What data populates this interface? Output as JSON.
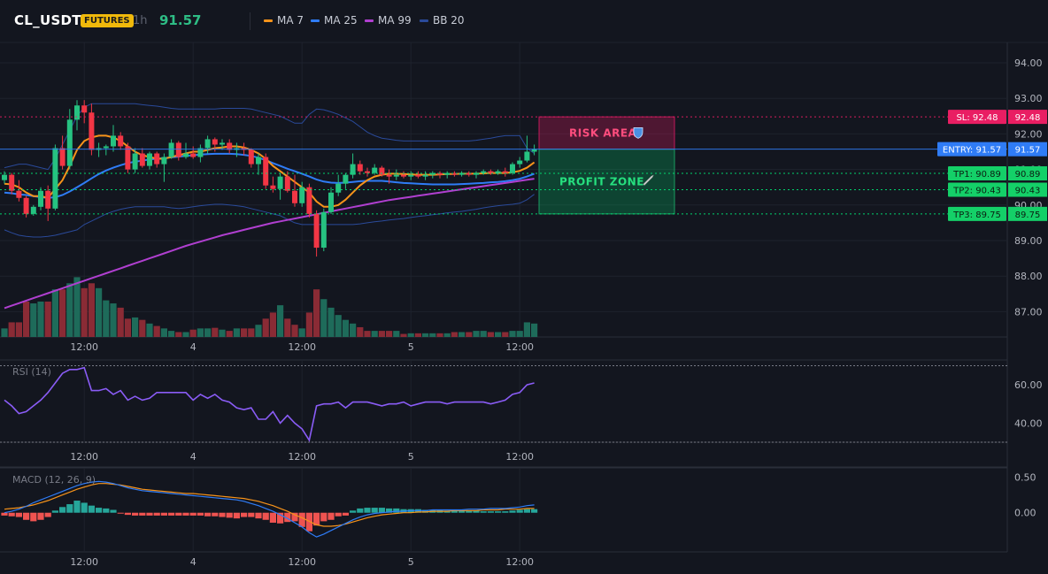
{
  "header": {
    "symbol": "CL_USDT",
    "market_badge": "FUTURES",
    "timeframe": "1h",
    "last_price": "91.57",
    "indicators": [
      {
        "label": "MA 7",
        "color": "#f7931a"
      },
      {
        "label": "MA 25",
        "color": "#2f7cf6"
      },
      {
        "label": "MA 99",
        "color": "#b03fd0"
      },
      {
        "label": "BB 20",
        "color": "#2a4a9a"
      }
    ]
  },
  "colors": {
    "background": "#13161f",
    "grid": "#1e222d",
    "up": "#26c281",
    "down": "#f23645",
    "volume_up": "#1e6b5a",
    "volume_down": "#8a2b35",
    "rsi": "#8a5cf6",
    "macd": "#2f7cf6",
    "signal": "#f7931a",
    "hist_up": "#26a69a",
    "hist_down": "#ef5350",
    "stop_loss": "#e91e63",
    "entry": "#2f7cf6",
    "take_profit": "#00e676"
  },
  "chart_data": [
    {
      "type": "candlestick",
      "name": "price",
      "x_tick_labels": [
        "12:00",
        "4",
        "12:00",
        "5",
        "12:00"
      ],
      "y_tick_labels": [
        "94.00",
        "93.00",
        "92.00",
        "91.00",
        "90.00",
        "89.00",
        "88.00",
        "87.00"
      ],
      "ylim": [
        86.25,
        94.5
      ],
      "ohlc": [
        [
          90.7,
          90.95,
          90.6,
          90.85
        ],
        [
          90.85,
          90.9,
          90.3,
          90.4
        ],
        [
          90.4,
          90.7,
          90.1,
          90.2
        ],
        [
          90.2,
          90.25,
          89.65,
          89.75
        ],
        [
          89.75,
          90.0,
          89.7,
          89.95
        ],
        [
          89.95,
          90.5,
          89.85,
          90.4
        ],
        [
          90.4,
          90.55,
          89.55,
          89.9
        ],
        [
          89.9,
          91.7,
          89.85,
          91.6
        ],
        [
          91.6,
          91.95,
          91.0,
          91.1
        ],
        [
          91.1,
          92.7,
          91.0,
          92.4
        ],
        [
          92.4,
          92.95,
          92.1,
          92.8
        ],
        [
          92.8,
          92.95,
          92.3,
          92.6
        ],
        [
          92.6,
          92.85,
          91.4,
          91.55
        ],
        [
          91.55,
          91.75,
          91.35,
          91.6
        ],
        [
          91.6,
          91.7,
          91.4,
          91.65
        ],
        [
          91.65,
          92.25,
          91.5,
          91.95
        ],
        [
          91.95,
          92.05,
          91.55,
          91.65
        ],
        [
          91.65,
          91.75,
          90.9,
          91.0
        ],
        [
          91.0,
          91.6,
          90.9,
          91.45
        ],
        [
          91.45,
          91.6,
          91.05,
          91.1
        ],
        [
          91.1,
          91.5,
          91.0,
          91.45
        ],
        [
          91.45,
          91.5,
          91.05,
          91.15
        ],
        [
          91.15,
          91.45,
          90.65,
          91.35
        ],
        [
          91.35,
          91.85,
          91.3,
          91.75
        ],
        [
          91.75,
          91.8,
          91.25,
          91.35
        ],
        [
          91.35,
          91.75,
          91.3,
          91.45
        ],
        [
          91.45,
          91.65,
          91.3,
          91.35
        ],
        [
          91.35,
          91.7,
          91.2,
          91.6
        ],
        [
          91.6,
          91.95,
          91.45,
          91.85
        ],
        [
          91.85,
          91.9,
          91.5,
          91.7
        ],
        [
          91.7,
          91.85,
          91.55,
          91.75
        ],
        [
          91.75,
          91.85,
          91.45,
          91.55
        ],
        [
          91.55,
          91.75,
          91.35,
          91.6
        ],
        [
          91.6,
          91.75,
          91.4,
          91.55
        ],
        [
          91.55,
          91.6,
          91.05,
          91.15
        ],
        [
          91.15,
          91.45,
          90.85,
          91.35
        ],
        [
          91.35,
          91.45,
          90.45,
          90.55
        ],
        [
          90.55,
          90.8,
          90.35,
          90.45
        ],
        [
          90.45,
          90.9,
          90.15,
          90.8
        ],
        [
          90.8,
          90.95,
          90.35,
          90.4
        ],
        [
          90.4,
          90.85,
          89.95,
          90.05
        ],
        [
          90.05,
          90.65,
          89.95,
          90.5
        ],
        [
          90.5,
          90.6,
          89.65,
          89.75
        ],
        [
          89.75,
          89.85,
          88.55,
          88.8
        ],
        [
          88.8,
          89.9,
          88.7,
          89.8
        ],
        [
          89.8,
          90.5,
          89.75,
          90.35
        ],
        [
          90.35,
          90.85,
          90.25,
          90.6
        ],
        [
          90.6,
          90.9,
          90.45,
          90.85
        ],
        [
          90.85,
          91.45,
          90.75,
          91.15
        ],
        [
          91.15,
          91.25,
          90.85,
          90.95
        ],
        [
          90.95,
          91.05,
          90.8,
          90.9
        ],
        [
          90.9,
          91.15,
          90.85,
          91.05
        ],
        [
          91.05,
          91.1,
          90.8,
          90.85
        ],
        [
          90.85,
          91.0,
          90.6,
          90.8
        ],
        [
          90.8,
          91.0,
          90.7,
          90.85
        ],
        [
          90.85,
          90.95,
          90.75,
          90.8
        ],
        [
          90.8,
          90.95,
          90.7,
          90.85
        ],
        [
          90.85,
          90.95,
          90.75,
          90.8
        ],
        [
          90.8,
          90.95,
          90.7,
          90.85
        ],
        [
          90.85,
          90.95,
          90.75,
          90.9
        ],
        [
          90.9,
          90.95,
          90.75,
          90.85
        ],
        [
          90.85,
          90.95,
          90.75,
          90.9
        ],
        [
          90.9,
          90.95,
          90.8,
          90.85
        ],
        [
          90.85,
          90.95,
          90.8,
          90.9
        ],
        [
          90.9,
          90.95,
          90.8,
          90.85
        ],
        [
          90.85,
          90.95,
          90.75,
          90.9
        ],
        [
          90.9,
          91.0,
          90.85,
          90.95
        ],
        [
          90.95,
          91.0,
          90.85,
          90.9
        ],
        [
          90.9,
          91.0,
          90.85,
          90.95
        ],
        [
          90.95,
          91.05,
          90.8,
          90.9
        ],
        [
          90.9,
          91.2,
          90.85,
          91.15
        ],
        [
          91.15,
          91.35,
          91.05,
          91.25
        ],
        [
          91.25,
          91.95,
          91.2,
          91.5
        ],
        [
          91.5,
          91.7,
          91.4,
          91.57
        ]
      ],
      "ma7": [
        90.6,
        90.58,
        90.5,
        90.35,
        90.25,
        90.25,
        90.2,
        90.45,
        90.7,
        91.1,
        91.55,
        91.8,
        91.9,
        91.95,
        91.95,
        91.9,
        91.8,
        91.65,
        91.5,
        91.4,
        91.35,
        91.3,
        91.3,
        91.35,
        91.4,
        91.45,
        91.5,
        91.5,
        91.55,
        91.6,
        91.62,
        91.65,
        91.65,
        91.62,
        91.55,
        91.45,
        91.3,
        91.1,
        90.95,
        90.8,
        90.65,
        90.5,
        90.35,
        90.1,
        89.95,
        89.95,
        90.0,
        90.15,
        90.35,
        90.55,
        90.7,
        90.8,
        90.85,
        90.88,
        90.88,
        90.87,
        90.86,
        90.85,
        90.85,
        90.85,
        90.86,
        90.87,
        90.87,
        90.88,
        90.88,
        90.88,
        90.89,
        90.9,
        90.9,
        90.9,
        90.92,
        90.96,
        91.05,
        91.2
      ],
      "ma25": [
        90.35,
        90.33,
        90.3,
        90.28,
        90.25,
        90.22,
        90.2,
        90.22,
        90.28,
        90.38,
        90.5,
        90.62,
        90.75,
        90.87,
        90.97,
        91.05,
        91.12,
        91.18,
        91.22,
        91.25,
        91.28,
        91.3,
        91.32,
        91.34,
        91.36,
        91.38,
        91.4,
        91.42,
        91.43,
        91.44,
        91.44,
        91.44,
        91.43,
        91.41,
        91.38,
        91.33,
        91.26,
        91.18,
        91.1,
        91.02,
        90.95,
        90.88,
        90.8,
        90.72,
        90.66,
        90.63,
        90.62,
        90.63,
        90.65,
        90.67,
        90.68,
        90.68,
        90.68,
        90.66,
        90.64,
        90.62,
        90.61,
        90.6,
        90.59,
        90.58,
        90.58,
        90.58,
        90.58,
        90.59,
        90.6,
        90.61,
        90.62,
        90.64,
        90.65,
        90.67,
        90.7,
        90.74,
        90.8,
        90.88
      ],
      "ma99": [
        87.1,
        87.17,
        87.24,
        87.31,
        87.38,
        87.45,
        87.52,
        87.59,
        87.66,
        87.73,
        87.8,
        87.87,
        87.94,
        88.01,
        88.08,
        88.15,
        88.22,
        88.29,
        88.36,
        88.43,
        88.5,
        88.57,
        88.64,
        88.71,
        88.78,
        88.85,
        88.91,
        88.97,
        89.03,
        89.09,
        89.15,
        89.2,
        89.25,
        89.3,
        89.35,
        89.4,
        89.45,
        89.5,
        89.54,
        89.58,
        89.62,
        89.66,
        89.7,
        89.74,
        89.78,
        89.82,
        89.86,
        89.9,
        89.94,
        89.98,
        90.02,
        90.06,
        90.1,
        90.14,
        90.17,
        90.2,
        90.23,
        90.26,
        90.29,
        90.32,
        90.35,
        90.38,
        90.41,
        90.44,
        90.47,
        90.5,
        90.53,
        90.56,
        90.59,
        90.62,
        90.65,
        90.68,
        90.71,
        90.74
      ],
      "bb_upper": [
        91.05,
        91.1,
        91.15,
        91.15,
        91.1,
        91.05,
        91.0,
        91.3,
        91.7,
        92.1,
        92.5,
        92.75,
        92.85,
        92.85,
        92.85,
        92.85,
        92.85,
        92.85,
        92.85,
        92.82,
        92.8,
        92.78,
        92.75,
        92.72,
        92.7,
        92.7,
        92.7,
        92.7,
        92.7,
        92.7,
        92.72,
        92.72,
        92.72,
        92.72,
        92.7,
        92.65,
        92.6,
        92.55,
        92.5,
        92.4,
        92.3,
        92.3,
        92.55,
        92.7,
        92.68,
        92.62,
        92.55,
        92.45,
        92.35,
        92.2,
        92.05,
        91.95,
        91.88,
        91.85,
        91.82,
        91.8,
        91.8,
        91.8,
        91.8,
        91.8,
        91.8,
        91.8,
        91.8,
        91.8,
        91.8,
        91.82,
        91.85,
        91.88,
        91.92,
        91.95,
        91.95,
        91.95,
        91.6,
        91.45
      ],
      "bb_lower": [
        89.3,
        89.22,
        89.15,
        89.12,
        89.1,
        89.1,
        89.12,
        89.15,
        89.2,
        89.25,
        89.3,
        89.45,
        89.55,
        89.65,
        89.75,
        89.82,
        89.88,
        89.92,
        89.95,
        89.95,
        89.95,
        89.95,
        89.95,
        89.92,
        89.9,
        89.92,
        89.95,
        89.98,
        90.0,
        90.02,
        90.02,
        90.0,
        89.98,
        89.95,
        89.9,
        89.85,
        89.8,
        89.75,
        89.7,
        89.6,
        89.5,
        89.45,
        89.45,
        89.45,
        89.45,
        89.45,
        89.45,
        89.45,
        89.45,
        89.47,
        89.5,
        89.53,
        89.55,
        89.58,
        89.6,
        89.62,
        89.65,
        89.68,
        89.7,
        89.73,
        89.75,
        89.78,
        89.8,
        89.82,
        89.85,
        89.88,
        89.92,
        89.95,
        89.98,
        90.0,
        90.02,
        90.05,
        90.15,
        90.3
      ],
      "volume_ylim": [
        0,
        100
      ],
      "volume": [
        14,
        24,
        24,
        58,
        55,
        58,
        58,
        78,
        78,
        88,
        98,
        80,
        88,
        80,
        60,
        55,
        48,
        30,
        32,
        28,
        22,
        18,
        14,
        10,
        8,
        8,
        12,
        14,
        14,
        15,
        12,
        10,
        14,
        14,
        14,
        20,
        30,
        40,
        52,
        30,
        20,
        14,
        40,
        78,
        62,
        48,
        36,
        28,
        22,
        16,
        10,
        10,
        10,
        10,
        10,
        5,
        6,
        6,
        6,
        6,
        6,
        6,
        8,
        8,
        8,
        10,
        10,
        8,
        8,
        8,
        10,
        10,
        24,
        22
      ],
      "levels": [
        {
          "label": "SL: 92.48",
          "value": 92.48,
          "tag": "92.48",
          "kind": "stop_loss"
        },
        {
          "label": "ENTRY: 91.57",
          "value": 91.57,
          "tag": "91.57",
          "kind": "entry"
        },
        {
          "label": "TP1: 90.89",
          "value": 90.89,
          "tag": "90.89",
          "kind": "take_profit"
        },
        {
          "label": "TP2: 90.43",
          "value": 90.43,
          "tag": "90.43",
          "kind": "take_profit"
        },
        {
          "label": "TP3: 89.75",
          "value": 89.75,
          "tag": "89.75",
          "kind": "take_profit"
        }
      ],
      "zones": [
        {
          "label": "RISK AREA",
          "icon": "shield-icon",
          "from": 91.57,
          "to": 92.48,
          "kind": "risk"
        },
        {
          "label": "PROFIT ZONE",
          "icon": "rocket-icon",
          "from": 89.75,
          "to": 91.57,
          "kind": "profit"
        }
      ]
    },
    {
      "type": "line",
      "name": "RSI (14)",
      "title": "RSI (14)",
      "ylim": [
        30,
        73
      ],
      "y_tick_labels": [
        "60.00",
        "40.00"
      ],
      "overbought": 70,
      "oversold": 30,
      "values": [
        52,
        49,
        45,
        46,
        49,
        52,
        56,
        61,
        66,
        68,
        68,
        69,
        57,
        57,
        58,
        55,
        57,
        52,
        54,
        52,
        53,
        56,
        56,
        56,
        56,
        56,
        52,
        55,
        53,
        55,
        52,
        51,
        48,
        47,
        48,
        42,
        42,
        46,
        40,
        44,
        40,
        37,
        31,
        49,
        50,
        50,
        51,
        48,
        51,
        51,
        51,
        50,
        49,
        50,
        50,
        51,
        49,
        50,
        51,
        51,
        51,
        50,
        51,
        51,
        51,
        51,
        51,
        50,
        51,
        52,
        55,
        56,
        60,
        61
      ]
    },
    {
      "type": "bar+line",
      "name": "MACD (12, 26, 9)",
      "title": "MACD (12, 26, 9)",
      "ylim": [
        -0.55,
        0.63
      ],
      "y_tick_labels": [
        "0.50",
        "0.00"
      ],
      "macd": [
        0.0,
        0.02,
        0.05,
        0.09,
        0.14,
        0.18,
        0.22,
        0.26,
        0.3,
        0.34,
        0.38,
        0.41,
        0.43,
        0.44,
        0.43,
        0.41,
        0.38,
        0.35,
        0.33,
        0.31,
        0.3,
        0.29,
        0.28,
        0.27,
        0.26,
        0.25,
        0.24,
        0.23,
        0.22,
        0.21,
        0.2,
        0.19,
        0.18,
        0.16,
        0.13,
        0.1,
        0.06,
        0.02,
        -0.03,
        -0.08,
        -0.14,
        -0.2,
        -0.28,
        -0.34,
        -0.3,
        -0.25,
        -0.2,
        -0.15,
        -0.1,
        -0.06,
        -0.03,
        -0.01,
        0.0,
        0.01,
        0.02,
        0.02,
        0.03,
        0.03,
        0.03,
        0.04,
        0.04,
        0.04,
        0.04,
        0.04,
        0.05,
        0.05,
        0.05,
        0.06,
        0.06,
        0.06,
        0.07,
        0.08,
        0.1,
        0.11
      ],
      "signal": [
        0.05,
        0.06,
        0.07,
        0.09,
        0.11,
        0.14,
        0.17,
        0.21,
        0.25,
        0.29,
        0.33,
        0.36,
        0.39,
        0.41,
        0.41,
        0.4,
        0.39,
        0.37,
        0.35,
        0.33,
        0.32,
        0.31,
        0.3,
        0.29,
        0.28,
        0.27,
        0.27,
        0.26,
        0.25,
        0.24,
        0.23,
        0.22,
        0.21,
        0.2,
        0.18,
        0.16,
        0.13,
        0.1,
        0.06,
        0.02,
        -0.03,
        -0.07,
        -0.12,
        -0.17,
        -0.19,
        -0.19,
        -0.18,
        -0.16,
        -0.13,
        -0.1,
        -0.07,
        -0.05,
        -0.03,
        -0.02,
        -0.01,
        0.0,
        0.0,
        0.01,
        0.01,
        0.02,
        0.02,
        0.02,
        0.03,
        0.03,
        0.03,
        0.03,
        0.04,
        0.04,
        0.04,
        0.05,
        0.05,
        0.05,
        0.06,
        0.06
      ],
      "histogram": [
        -0.04,
        -0.05,
        -0.06,
        -0.1,
        -0.12,
        -0.1,
        -0.06,
        0.03,
        0.08,
        0.12,
        0.17,
        0.14,
        0.1,
        0.07,
        0.06,
        0.04,
        -0.01,
        -0.03,
        -0.04,
        -0.04,
        -0.04,
        -0.04,
        -0.04,
        -0.04,
        -0.04,
        -0.04,
        -0.04,
        -0.04,
        -0.05,
        -0.05,
        -0.06,
        -0.07,
        -0.08,
        -0.06,
        -0.06,
        -0.08,
        -0.1,
        -0.14,
        -0.15,
        -0.13,
        -0.12,
        -0.2,
        -0.26,
        -0.18,
        -0.12,
        -0.1,
        -0.05,
        -0.04,
        0.03,
        0.06,
        0.07,
        0.07,
        0.07,
        0.06,
        0.06,
        0.05,
        0.05,
        0.05,
        0.04,
        0.04,
        0.04,
        0.03,
        0.03,
        0.03,
        0.03,
        0.03,
        0.02,
        0.02,
        0.02,
        0.02,
        0.03,
        0.04,
        0.05,
        0.05
      ]
    }
  ]
}
